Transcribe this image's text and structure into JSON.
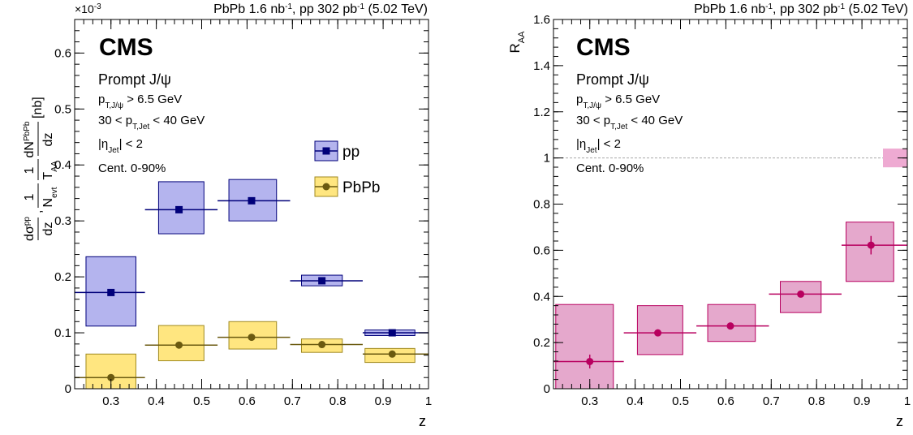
{
  "colors": {
    "pp_marker": "#00007a",
    "pp_box_fill": "#b4b4ee",
    "pp_box_stroke": "#00007a",
    "pbpb_marker": "#6b5a10",
    "pbpb_box_fill": "#ffe680",
    "pbpb_box_stroke": "#a08a20",
    "raa_marker": "#b8005f",
    "raa_box_fill": "#e5a8cc",
    "raa_box_stroke": "#b8005f",
    "unity_band_fill": "#eeaad2"
  },
  "panels": {
    "left": {
      "header": "PbPb 1.6 nb",
      "header_sup1": "-1",
      "header_mid": ", pp 302 pb",
      "header_sup2": "-1",
      "header_end": " (5.02 TeV)",
      "cms": "CMS",
      "label_lines": {
        "prompt": "Prompt J/ψ",
        "ptpsi_a": "p",
        "ptpsi_sub": "T,J/ψ",
        "ptpsi_b": " > 6.5 GeV",
        "ptjet_a": "30 < p",
        "ptjet_sub": "T,Jet",
        "ptjet_b": " < 40 GeV",
        "eta_a": "|η",
        "eta_sub": "Jet",
        "eta_b": "| < 2",
        "cent": "Cent. 0-90%"
      },
      "exponent": "×10",
      "exponent_sup": "-3",
      "xlabel": "z",
      "ylabel_parts": {
        "dsigma": "dσ",
        "pp_sup": "pp",
        "dz": "dz",
        "comma": ",",
        "one": "1",
        "n": "N",
        "evt": "evt",
        "dn": "dN",
        "pbpb_sup": "PbPb",
        "t": "T",
        "aa": "AA",
        "nb": "[nb]"
      },
      "legend": [
        "pp",
        "PbPb"
      ]
    },
    "right": {
      "header": "PbPb 1.6 nb",
      "header_sup1": "-1",
      "header_mid": ", pp 302 pb",
      "header_sup2": "-1",
      "header_end": " (5.02 TeV)",
      "cms": "CMS",
      "label_lines": {
        "prompt": "Prompt J/ψ",
        "ptpsi_a": "p",
        "ptpsi_sub": "T,J/ψ",
        "ptpsi_b": " > 6.5 GeV",
        "ptjet_a": "30 < p",
        "ptjet_sub": "T,Jet",
        "ptjet_b": " < 40 GeV",
        "eta_a": "|η",
        "eta_sub": "Jet",
        "eta_b": "| < 2",
        "cent": "Cent. 0-90%"
      },
      "ylabel_main": "R",
      "ylabel_sub": "AA",
      "xlabel": "z"
    }
  },
  "chart_data": [
    {
      "type": "scatter",
      "title": "",
      "xlabel": "z",
      "ylabel": "dσpp/dz, 1/Nevt 1/TAA dNPbPb/dz [nb]",
      "ylim": [
        0,
        0.66
      ],
      "xlim": [
        0.22,
        1.0
      ],
      "y_scale_factor": "×10^-3",
      "grid": false,
      "legend_position": "right",
      "x_ticks": [
        0.3,
        0.4,
        0.5,
        0.6,
        0.7,
        0.8,
        0.9,
        1
      ],
      "y_ticks": [
        0,
        0.1,
        0.2,
        0.3,
        0.4,
        0.5,
        0.6
      ],
      "x_tick_labels": [
        "0.3",
        "0.4",
        "0.5",
        "0.6",
        "0.7",
        "0.8",
        "0.9",
        "1"
      ],
      "y_tick_labels": [
        "0",
        "0.1",
        "0.2",
        "0.3",
        "0.4",
        "0.5",
        "0.6"
      ],
      "series": [
        {
          "name": "pp",
          "points": [
            {
              "x": 0.3,
              "y": 0.172,
              "xlo": 0.22,
              "xhi": 0.375,
              "syslo": 0.112,
              "syshi": 0.236,
              "boxlo": 0.245,
              "boxhi": 0.355
            },
            {
              "x": 0.45,
              "y": 0.32,
              "xlo": 0.375,
              "xhi": 0.535,
              "syslo": 0.277,
              "syshi": 0.37,
              "boxlo": 0.405,
              "boxhi": 0.505
            },
            {
              "x": 0.61,
              "y": 0.336,
              "xlo": 0.535,
              "xhi": 0.695,
              "syslo": 0.3,
              "syshi": 0.374,
              "boxlo": 0.56,
              "boxhi": 0.665
            },
            {
              "x": 0.765,
              "y": 0.193,
              "xlo": 0.695,
              "xhi": 0.855,
              "syslo": 0.184,
              "syshi": 0.203,
              "boxlo": 0.72,
              "boxhi": 0.81
            },
            {
              "x": 0.92,
              "y": 0.1,
              "xlo": 0.855,
              "xhi": 1.0,
              "syslo": 0.095,
              "syshi": 0.105,
              "boxlo": 0.86,
              "boxhi": 0.97
            }
          ]
        },
        {
          "name": "PbPb",
          "points": [
            {
              "x": 0.3,
              "y": 0.02,
              "xlo": 0.22,
              "xhi": 0.375,
              "syslo": 0.0,
              "syshi": 0.062,
              "boxlo": 0.245,
              "boxhi": 0.355
            },
            {
              "x": 0.45,
              "y": 0.078,
              "xlo": 0.375,
              "xhi": 0.535,
              "syslo": 0.05,
              "syshi": 0.113,
              "boxlo": 0.405,
              "boxhi": 0.505
            },
            {
              "x": 0.61,
              "y": 0.092,
              "xlo": 0.535,
              "xhi": 0.695,
              "syslo": 0.071,
              "syshi": 0.12,
              "boxlo": 0.56,
              "boxhi": 0.665
            },
            {
              "x": 0.765,
              "y": 0.079,
              "xlo": 0.695,
              "xhi": 0.855,
              "syslo": 0.065,
              "syshi": 0.089,
              "boxlo": 0.72,
              "boxhi": 0.81
            },
            {
              "x": 0.92,
              "y": 0.062,
              "xlo": 0.855,
              "xhi": 1.0,
              "syslo": 0.047,
              "syshi": 0.072,
              "boxlo": 0.86,
              "boxhi": 0.97
            }
          ]
        }
      ]
    },
    {
      "type": "scatter",
      "title": "",
      "xlabel": "z",
      "ylabel": "RAA",
      "ylim": [
        0,
        1.6
      ],
      "xlim": [
        0.22,
        1.0
      ],
      "grid": false,
      "reference_line": 1.0,
      "reference_band": [
        0.97,
        1.03
      ],
      "x_ticks": [
        0.3,
        0.4,
        0.5,
        0.6,
        0.7,
        0.8,
        0.9,
        1
      ],
      "y_ticks": [
        0,
        0.2,
        0.4,
        0.6,
        0.8,
        1,
        1.2,
        1.4,
        1.6
      ],
      "x_tick_labels": [
        "0.3",
        "0.4",
        "0.5",
        "0.6",
        "0.7",
        "0.8",
        "0.9",
        "1"
      ],
      "y_tick_labels": [
        "0",
        "0.2",
        "0.4",
        "0.6",
        "0.8",
        "1",
        "1.2",
        "1.4",
        "1.6"
      ],
      "series": [
        {
          "points": [
            {
              "x": 0.3,
              "y": 0.118,
              "xlo": 0.22,
              "xhi": 0.375,
              "staterr": 0.03,
              "syslo": 0.0,
              "syshi": 0.365,
              "boxlo": 0.225,
              "boxhi": 0.352
            },
            {
              "x": 0.45,
              "y": 0.242,
              "xlo": 0.375,
              "xhi": 0.535,
              "staterr": 0.01,
              "syslo": 0.148,
              "syshi": 0.36,
              "boxlo": 0.405,
              "boxhi": 0.505
            },
            {
              "x": 0.61,
              "y": 0.272,
              "xlo": 0.535,
              "xhi": 0.695,
              "staterr": 0.01,
              "syslo": 0.205,
              "syshi": 0.365,
              "boxlo": 0.56,
              "boxhi": 0.665
            },
            {
              "x": 0.765,
              "y": 0.41,
              "xlo": 0.695,
              "xhi": 0.855,
              "staterr": 0.01,
              "syslo": 0.33,
              "syshi": 0.465,
              "boxlo": 0.72,
              "boxhi": 0.81
            },
            {
              "x": 0.92,
              "y": 0.622,
              "xlo": 0.855,
              "xhi": 1.0,
              "staterr": 0.04,
              "syslo": 0.465,
              "syshi": 0.722,
              "boxlo": 0.865,
              "boxhi": 0.97
            }
          ]
        }
      ]
    }
  ]
}
